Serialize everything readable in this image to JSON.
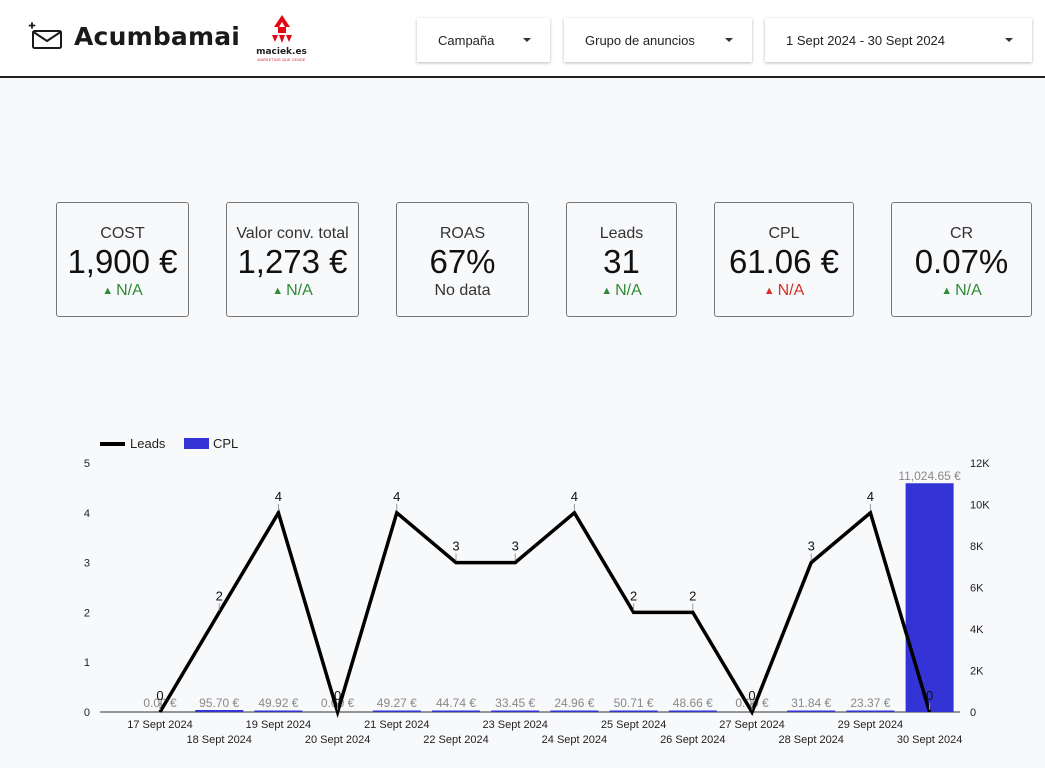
{
  "header": {
    "brand_name": "Acumbamail",
    "partner_name": "maciek.es",
    "partner_tagline": "MARKETING QUE VENDE"
  },
  "filters": {
    "campaign_label": "Campaña",
    "adgroup_label": "Grupo de anuncios",
    "date_label": "1 Sept 2024 - 30 Sept 2024"
  },
  "kpis": [
    {
      "label": "COST",
      "value": "1,900 €",
      "delta": "N/A",
      "trend": "up"
    },
    {
      "label": "Valor conv. total",
      "value": "1,273 €",
      "delta": "N/A",
      "trend": "up"
    },
    {
      "label": "ROAS",
      "value": "67%",
      "delta": "No data",
      "trend": "none"
    },
    {
      "label": "Leads",
      "value": "31",
      "delta": "N/A",
      "trend": "up"
    },
    {
      "label": "CPL",
      "value": "61.06 €",
      "delta": "N/A",
      "trend": "bad"
    },
    {
      "label": "CR",
      "value": "0.07%",
      "delta": "N/A",
      "trend": "up"
    }
  ],
  "colors": {
    "positive": "#2e8b3a",
    "negative": "#d93025",
    "line": "#000000",
    "bar": "#3333d6"
  },
  "icons": {
    "brand": "mail-envelope-plus-icon",
    "partner": "rocket-logo-icon",
    "dropdown": "caret-down-icon",
    "trend_up": "arrow-up-icon"
  },
  "chart_data": {
    "type": "bar",
    "categories": [
      "17 Sept 2024",
      "18 Sept 2024",
      "19 Sept 2024",
      "20 Sept 2024",
      "21 Sept 2024",
      "22 Sept 2024",
      "23 Sept 2024",
      "24 Sept 2024",
      "25 Sept 2024",
      "26 Sept 2024",
      "27 Sept 2024",
      "28 Sept 2024",
      "29 Sept 2024",
      "30 Sept 2024"
    ],
    "series": [
      {
        "name": "Leads",
        "type": "line",
        "axis": "left",
        "values": [
          0,
          2,
          4,
          0,
          4,
          3,
          3,
          4,
          2,
          2,
          0,
          3,
          4,
          0
        ],
        "labels": [
          "0",
          "2",
          "4",
          "0",
          "4",
          "3",
          "3",
          "4",
          "2",
          "2",
          "0",
          "3",
          "4",
          "0"
        ]
      },
      {
        "name": "CPL",
        "type": "bar",
        "axis": "right",
        "values": [
          0,
          95.7,
          49.92,
          0,
          49.27,
          44.74,
          33.45,
          24.96,
          50.71,
          48.66,
          0,
          31.84,
          23.37,
          11024.65
        ],
        "labels": [
          "0.00 €",
          "95.70 €",
          "49.92 €",
          "0.00 €",
          "49.27 €",
          "44.74 €",
          "33.45 €",
          "24.96 €",
          "50.71 €",
          "48.66 €",
          "0.00 €",
          "31.84 €",
          "23.37 €",
          "11,024.65 €"
        ]
      }
    ],
    "y_left": {
      "min": 0,
      "max": 5,
      "ticks": [
        "0",
        "1",
        "2",
        "3",
        "4",
        "5"
      ]
    },
    "y_right": {
      "min": 0,
      "max": 12000,
      "ticks": [
        "0",
        "2K",
        "4K",
        "6K",
        "8K",
        "10K",
        "12K"
      ]
    },
    "legend": "top-left",
    "grid": false
  }
}
